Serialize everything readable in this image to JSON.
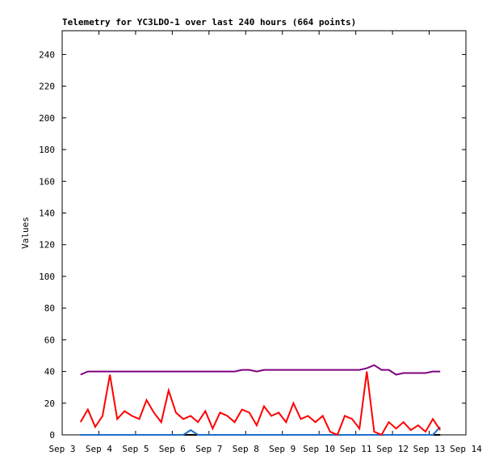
{
  "chart_data": {
    "type": "line",
    "title": "Telemetry for YC3LDO-1 over last 240 hours (664 points)",
    "y_label": "Values",
    "xlim": [
      3,
      14
    ],
    "xticks": [
      {
        "value": 3,
        "label": "Sep 3"
      },
      {
        "value": 4,
        "label": "Sep 4"
      },
      {
        "value": 5,
        "label": "Sep 5"
      },
      {
        "value": 6,
        "label": "Sep 6"
      },
      {
        "value": 7,
        "label": "Sep 7"
      },
      {
        "value": 8,
        "label": "Sep 8"
      },
      {
        "value": 9,
        "label": "Sep 9"
      },
      {
        "value": 10,
        "label": "Sep 10"
      },
      {
        "value": 11,
        "label": "Sep 11"
      },
      {
        "value": 12,
        "label": "Sep 12"
      },
      {
        "value": 13,
        "label": "Sep 13"
      },
      {
        "value": 14,
        "label": "Sep 14"
      }
    ],
    "ylim": [
      0,
      255
    ],
    "yticks": [
      0,
      20,
      40,
      60,
      80,
      100,
      120,
      140,
      160,
      180,
      200,
      220,
      240
    ],
    "x": [
      3.5,
      3.7,
      3.9,
      4.1,
      4.3,
      4.5,
      4.7,
      4.9,
      5.1,
      5.3,
      5.5,
      5.7,
      5.9,
      6.1,
      6.3,
      6.5,
      6.7,
      6.9,
      7.1,
      7.3,
      7.5,
      7.7,
      7.9,
      8.1,
      8.3,
      8.5,
      8.7,
      8.9,
      9.1,
      9.3,
      9.5,
      9.7,
      9.9,
      10.1,
      10.3,
      10.5,
      10.7,
      10.9,
      11.1,
      11.3,
      11.5,
      11.7,
      11.9,
      12.1,
      12.3,
      12.5,
      12.7,
      12.9,
      13.1,
      13.3
    ],
    "series": [
      {
        "color": "#000000",
        "values": [
          0,
          0,
          0,
          0,
          0,
          0,
          0,
          0,
          0,
          0,
          0,
          0,
          0,
          0,
          0,
          0,
          0,
          0,
          0,
          0,
          0,
          0,
          0,
          0,
          0,
          0,
          0,
          0,
          0,
          0,
          0,
          0,
          0,
          0,
          0,
          0,
          0,
          0,
          0,
          0,
          0,
          0,
          0,
          0,
          0,
          0,
          0,
          0,
          0,
          0
        ]
      },
      {
        "color": "#1f6fc8",
        "values": [
          0,
          0,
          0,
          0,
          0,
          0,
          0,
          0,
          0,
          0,
          0,
          0,
          0,
          0,
          0,
          3,
          0,
          0,
          0,
          0,
          0,
          0,
          0,
          0,
          0,
          0,
          0,
          0,
          0,
          0,
          0,
          0,
          0,
          0,
          0,
          0,
          0,
          0,
          0,
          0,
          0,
          0,
          0,
          0,
          0,
          0,
          0,
          0,
          0,
          5
        ]
      },
      {
        "color": "#ff0000",
        "values": [
          8,
          16,
          5,
          12,
          38,
          10,
          15,
          12,
          10,
          22,
          14,
          8,
          28,
          14,
          10,
          12,
          8,
          15,
          4,
          14,
          12,
          8,
          16,
          14,
          6,
          18,
          12,
          14,
          8,
          20,
          10,
          12,
          8,
          12,
          2,
          0,
          12,
          10,
          4,
          40,
          2,
          0,
          8,
          4,
          8,
          3,
          6,
          2,
          10,
          3
        ]
      },
      {
        "color": "#800080",
        "values": [
          38,
          40,
          40,
          40,
          40,
          40,
          40,
          40,
          40,
          40,
          40,
          40,
          40,
          40,
          40,
          40,
          40,
          40,
          40,
          40,
          40,
          40,
          41,
          41,
          40,
          41,
          41,
          41,
          41,
          41,
          41,
          41,
          41,
          41,
          41,
          41,
          41,
          41,
          41,
          42,
          44,
          41,
          41,
          38,
          39,
          39,
          39,
          39,
          40,
          40
        ]
      }
    ]
  }
}
